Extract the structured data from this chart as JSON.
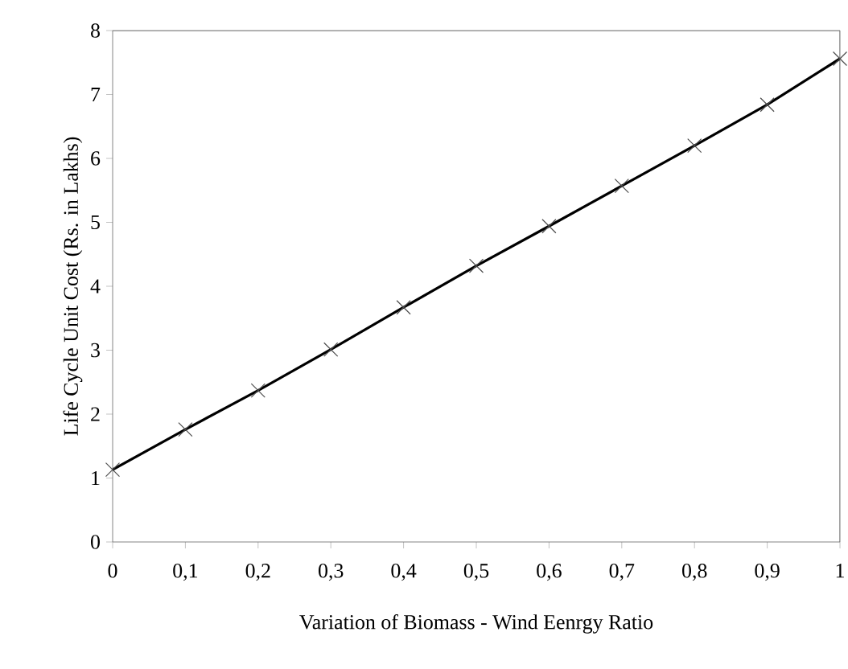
{
  "chart_data": {
    "type": "line",
    "xlabel": "Variation of Biomass - Wind Eenrgy Ratio",
    "ylabel": "Life Cycle Unit Cost (Rs. in Lakhs)",
    "x": [
      0,
      0.1,
      0.2,
      0.3,
      0.4,
      0.5,
      0.6,
      0.7,
      0.8,
      0.9,
      1
    ],
    "series": [
      {
        "color": "#000000",
        "values": [
          1.13,
          1.76,
          2.37,
          3.01,
          3.67,
          4.32,
          4.94,
          5.57,
          6.2,
          6.84,
          7.56
        ]
      }
    ],
    "xlim": [
      0,
      1
    ],
    "ylim": [
      0,
      8
    ],
    "xticks": [
      0,
      {
        "value": 0.1,
        "label": "0,1"
      },
      {
        "value": 0.2,
        "label": "0,2"
      },
      {
        "value": 0.3,
        "label": "0,3"
      },
      {
        "value": 0.4,
        "label": "0,4"
      },
      {
        "value": 0.5,
        "label": "0,5"
      },
      {
        "value": 0.6,
        "label": "0,6"
      },
      {
        "value": 0.7,
        "label": "0,7"
      },
      {
        "value": 0.8,
        "label": "0,8"
      },
      {
        "value": 0.9,
        "label": "0,9"
      },
      1
    ],
    "yticks": [
      0,
      1,
      2,
      3,
      4,
      5,
      6,
      7,
      8
    ],
    "marker": "cross",
    "line_style": "solid"
  }
}
